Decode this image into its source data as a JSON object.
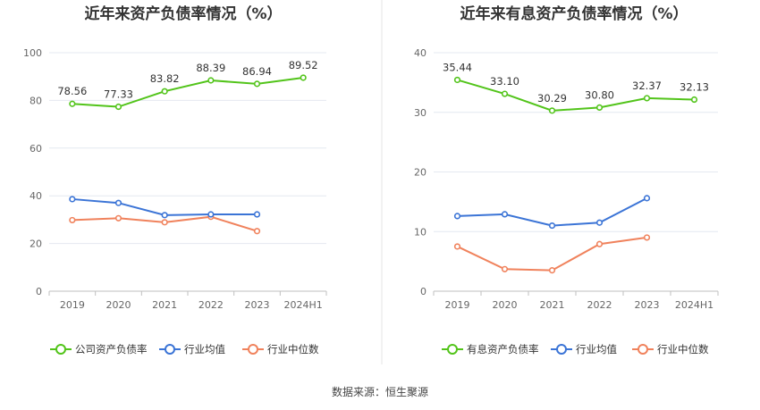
{
  "source_label": "数据来源：恒生聚源",
  "chart_data": [
    {
      "type": "line",
      "title": "近年来资产负债率情况（%）",
      "categories": [
        "2019",
        "2020",
        "2021",
        "2022",
        "2023",
        "2024H1"
      ],
      "ylim": [
        0,
        100
      ],
      "yticks": [
        0,
        20,
        40,
        60,
        80,
        100
      ],
      "grid": true,
      "legend_position": "bottom",
      "series": [
        {
          "name": "公司资产负债率",
          "color": "#52c41a",
          "values": [
            78.56,
            77.33,
            83.82,
            88.39,
            86.94,
            89.52
          ],
          "labels": [
            "78.56",
            "77.33",
            "83.82",
            "88.39",
            "86.94",
            "89.52"
          ]
        },
        {
          "name": "行业均值",
          "color": "#3b74d6",
          "values": [
            38.6,
            37.0,
            31.9,
            32.2,
            32.2,
            null
          ]
        },
        {
          "name": "行业中位数",
          "color": "#f0825c",
          "values": [
            29.8,
            30.6,
            28.9,
            31.2,
            25.2,
            null
          ]
        }
      ]
    },
    {
      "type": "line",
      "title": "近年来有息资产负债率情况（%）",
      "categories": [
        "2019",
        "2020",
        "2021",
        "2022",
        "2023",
        "2024H1"
      ],
      "ylim": [
        0,
        40
      ],
      "yticks": [
        0,
        10,
        20,
        30,
        40
      ],
      "grid": true,
      "legend_position": "bottom",
      "series": [
        {
          "name": "有息资产负债率",
          "color": "#52c41a",
          "values": [
            35.44,
            33.1,
            30.29,
            30.8,
            32.37,
            32.13
          ],
          "labels": [
            "35.44",
            "33.10",
            "30.29",
            "30.80",
            "32.37",
            "32.13"
          ]
        },
        {
          "name": "行业均值",
          "color": "#3b74d6",
          "values": [
            12.6,
            12.9,
            11.0,
            11.5,
            15.6,
            null
          ]
        },
        {
          "name": "行业中位数",
          "color": "#f0825c",
          "values": [
            7.5,
            3.7,
            3.5,
            7.9,
            9.0,
            null
          ]
        }
      ]
    }
  ]
}
